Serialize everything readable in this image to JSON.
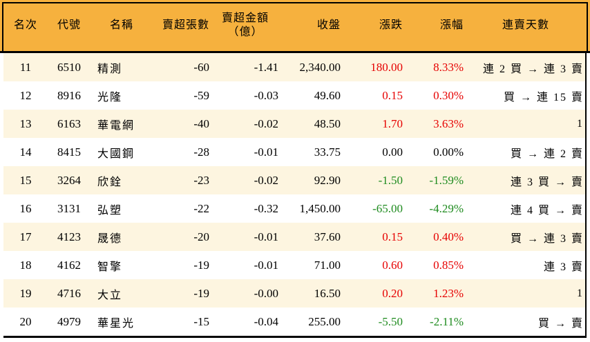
{
  "colors": {
    "header-bg": "#f6b13e",
    "row-stripe": "#fdf5e0",
    "row-plain": "#ffffff",
    "up": "#e60000",
    "down": "#1e8b1e",
    "text": "#000000",
    "border": "#000000"
  },
  "chart_data": {
    "type": "table",
    "columns": [
      "名次",
      "代號",
      "名稱",
      "賣超張數",
      "賣超金額\n（億）",
      "收盤",
      "漲跌",
      "漲幅",
      "連賣天數"
    ],
    "rows": [
      {
        "rank": "11",
        "code": "6510",
        "name": "精測",
        "net_sell_lots": "-60",
        "net_sell_amount": "-1.41",
        "close": "2,340.00",
        "change": "180.00",
        "change_pct": "8.33%",
        "streak": "連 2 買 → 連 3 賣",
        "dir": "up"
      },
      {
        "rank": "12",
        "code": "8916",
        "name": "光隆",
        "net_sell_lots": "-59",
        "net_sell_amount": "-0.03",
        "close": "49.60",
        "change": "0.15",
        "change_pct": "0.30%",
        "streak": "買 → 連 15 賣",
        "dir": "up"
      },
      {
        "rank": "13",
        "code": "6163",
        "name": "華電網",
        "net_sell_lots": "-40",
        "net_sell_amount": "-0.02",
        "close": "48.50",
        "change": "1.70",
        "change_pct": "3.63%",
        "streak": "1",
        "dir": "up"
      },
      {
        "rank": "14",
        "code": "8415",
        "name": "大國鋼",
        "net_sell_lots": "-28",
        "net_sell_amount": "-0.01",
        "close": "33.75",
        "change": "0.00",
        "change_pct": "0.00%",
        "streak": "買 → 連 2 賣",
        "dir": "flat"
      },
      {
        "rank": "15",
        "code": "3264",
        "name": "欣銓",
        "net_sell_lots": "-23",
        "net_sell_amount": "-0.02",
        "close": "92.90",
        "change": "-1.50",
        "change_pct": "-1.59%",
        "streak": "連 3 買 → 賣",
        "dir": "down"
      },
      {
        "rank": "16",
        "code": "3131",
        "name": "弘塑",
        "net_sell_lots": "-22",
        "net_sell_amount": "-0.32",
        "close": "1,450.00",
        "change": "-65.00",
        "change_pct": "-4.29%",
        "streak": "連 4 買 → 賣",
        "dir": "down"
      },
      {
        "rank": "17",
        "code": "4123",
        "name": "晟德",
        "net_sell_lots": "-20",
        "net_sell_amount": "-0.01",
        "close": "37.60",
        "change": "0.15",
        "change_pct": "0.40%",
        "streak": "買 → 連 3 賣",
        "dir": "up"
      },
      {
        "rank": "18",
        "code": "4162",
        "name": "智擎",
        "net_sell_lots": "-19",
        "net_sell_amount": "-0.01",
        "close": "71.00",
        "change": "0.60",
        "change_pct": "0.85%",
        "streak": "連 3 賣",
        "dir": "up"
      },
      {
        "rank": "19",
        "code": "4716",
        "name": "大立",
        "net_sell_lots": "-19",
        "net_sell_amount": "-0.00",
        "close": "16.50",
        "change": "0.20",
        "change_pct": "1.23%",
        "streak": "1",
        "dir": "up"
      },
      {
        "rank": "20",
        "code": "4979",
        "name": "華星光",
        "net_sell_lots": "-15",
        "net_sell_amount": "-0.04",
        "close": "255.00",
        "change": "-5.50",
        "change_pct": "-2.11%",
        "streak": "買 → 賣",
        "dir": "down"
      }
    ]
  }
}
